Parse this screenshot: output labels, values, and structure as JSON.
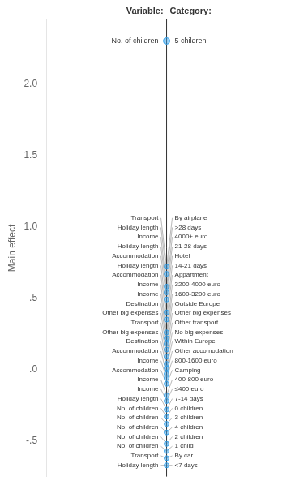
{
  "chart_data": {
    "type": "dot",
    "title": [
      "Variable:",
      "Category:"
    ],
    "ylabel": "Main effect",
    "variables": [
      "Transport",
      "Holiday length",
      "Income",
      "Holiday length",
      "Accommodation",
      "Holiday length",
      "Accommodation",
      "Income",
      "Income",
      "Destination",
      "Other big expenses",
      "Transport",
      "Other big expenses",
      "Destination",
      "Accommodation",
      "Income",
      "Accommodation",
      "Income",
      "Income",
      "Holiday length",
      "No. of children",
      "No. of children",
      "No. of children",
      "No. of children",
      "No. of children",
      "Transport",
      "Holiday length"
    ],
    "categories": [
      "By airplane",
      ">28 days",
      "4000+ euro",
      "21-28 days",
      "Hotel",
      "14-21 days",
      "Appartment",
      "3200-4000 euro",
      "1600-3200 euro",
      "Outside Europe",
      "Other big expenses",
      "Other transport",
      "No big expenses",
      "Within Europe",
      "Other accomodation",
      "800-1600 euro",
      "Camping",
      "400-800 euro",
      "≤400 euro",
      "7-14 days",
      "0 children",
      "3 children",
      "4 children",
      "2 children",
      "1 child",
      "By car",
      "<7 days"
    ],
    "values": [
      0.72,
      0.67,
      0.58,
      0.54,
      0.49,
      0.4,
      0.35,
      0.26,
      0.22,
      0.18,
      0.14,
      0.09,
      0.04,
      0.01,
      -0.03,
      -0.06,
      -0.1,
      -0.18,
      -0.22,
      -0.28,
      -0.33,
      -0.38,
      -0.44,
      -0.52,
      -0.57,
      -0.62,
      -0.67
    ],
    "highlight": {
      "variable": "No. of children",
      "category": "5 children",
      "value": 2.3
    },
    "ylim": [
      -0.75,
      2.45
    ],
    "yticks": [
      {
        "value": -0.5,
        "label": "-.5"
      },
      {
        "value": 0.0,
        "label": ".0"
      },
      {
        "value": 0.5,
        "label": ".5"
      },
      {
        "value": 1.0,
        "label": "1.0"
      },
      1.5,
      {
        "value": 2.0,
        "label": "2.0"
      }
    ],
    "grid": false,
    "tick_labels": "y"
  }
}
